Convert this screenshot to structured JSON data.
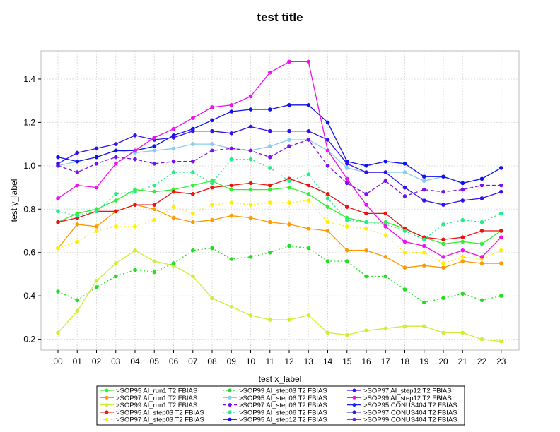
{
  "chart_data": {
    "type": "line",
    "title": "test title",
    "xlabel": "test x_label",
    "ylabel": "test y_label",
    "categories": [
      "00",
      "01",
      "02",
      "03",
      "04",
      "05",
      "06",
      "07",
      "08",
      "09",
      "10",
      "11",
      "12",
      "13",
      "14",
      "15",
      "16",
      "17",
      "18",
      "19",
      "20",
      "21",
      "22",
      "23"
    ],
    "yticks": [
      "0.2",
      "0.4",
      "0.6",
      "0.8",
      "1.0",
      "1.2",
      "1.4"
    ],
    "ylim": [
      0.15,
      1.53
    ],
    "grid": true,
    "legend_position": "bottom",
    "series": [
      {
        "name": ">SOP95 AI_run1 T2 FBIAS",
        "color": "#33ee33",
        "dash": "solid",
        "values": [
          0.74,
          0.78,
          0.8,
          0.84,
          0.89,
          0.88,
          0.89,
          0.91,
          0.93,
          0.89,
          0.89,
          0.89,
          0.9,
          0.87,
          0.81,
          0.76,
          0.74,
          0.74,
          0.71,
          0.67,
          0.64,
          0.65,
          0.64,
          0.7
        ]
      },
      {
        "name": ">SOP97 AI_run1 T2 FBIAS",
        "color": "#ff9900",
        "dash": "solid",
        "values": [
          0.62,
          0.73,
          0.72,
          0.79,
          0.82,
          0.8,
          0.76,
          0.74,
          0.75,
          0.77,
          0.76,
          0.74,
          0.73,
          0.71,
          0.7,
          0.61,
          0.61,
          0.58,
          0.53,
          0.54,
          0.53,
          0.56,
          0.55,
          0.55
        ]
      },
      {
        "name": ">SOP99 AI_run1 T2 FBIAS",
        "color": "#ccee33",
        "dash": "solid",
        "values": [
          0.23,
          0.33,
          0.47,
          0.55,
          0.61,
          0.56,
          0.54,
          0.49,
          0.39,
          0.35,
          0.31,
          0.29,
          0.29,
          0.31,
          0.23,
          0.22,
          0.24,
          0.25,
          0.26,
          0.26,
          0.23,
          0.23,
          0.2,
          0.19
        ]
      },
      {
        "name": ">SOP95 AI_step03 T2 FBIAS",
        "color": "#ee1111",
        "dash": "solid",
        "values": [
          0.74,
          0.76,
          0.79,
          0.79,
          0.82,
          0.82,
          0.88,
          0.87,
          0.9,
          0.91,
          0.92,
          0.91,
          0.94,
          0.91,
          0.87,
          0.81,
          0.78,
          0.78,
          0.71,
          0.67,
          0.66,
          0.67,
          0.7,
          0.7
        ]
      },
      {
        "name": ">SOP97 AI_step03 T2 FBIAS",
        "color": "#ffee00",
        "dash": "dotted",
        "values": [
          0.62,
          0.65,
          0.7,
          0.72,
          0.72,
          0.75,
          0.81,
          0.78,
          0.82,
          0.83,
          0.82,
          0.83,
          0.83,
          0.84,
          0.74,
          0.72,
          0.71,
          0.68,
          0.6,
          0.6,
          0.55,
          0.58,
          0.57,
          0.61
        ]
      },
      {
        "name": ">SOP99 AI_step03 T2 FBIAS",
        "color": "#22dd22",
        "dash": "dotted",
        "values": [
          0.42,
          0.38,
          0.44,
          0.49,
          0.52,
          0.51,
          0.55,
          0.61,
          0.62,
          0.57,
          0.58,
          0.6,
          0.63,
          0.62,
          0.56,
          0.56,
          0.49,
          0.49,
          0.43,
          0.37,
          0.39,
          0.41,
          0.38,
          0.4
        ]
      },
      {
        "name": ">SOP95 AI_step06 T2 FBIAS",
        "color": "#88ccee",
        "dash": "solid",
        "values": [
          1.0,
          1.02,
          1.04,
          1.07,
          1.06,
          1.07,
          1.08,
          1.1,
          1.1,
          1.08,
          1.07,
          1.09,
          1.12,
          1.12,
          1.07,
          0.99,
          0.97,
          0.97,
          0.97,
          0.93,
          0.95,
          0.92,
          0.94,
          0.99
        ]
      },
      {
        "name": ">SOP97 AI_step06 T2 FBIAS",
        "color": "#7711ee",
        "dash": "dashed",
        "values": [
          1.0,
          0.97,
          1.01,
          1.04,
          1.03,
          1.01,
          1.02,
          1.02,
          1.07,
          1.08,
          1.07,
          1.04,
          1.09,
          1.12,
          1.0,
          0.92,
          0.87,
          0.93,
          0.86,
          0.89,
          0.88,
          0.89,
          0.91,
          0.91
        ]
      },
      {
        "name": ">SOP99 AI_step06 T2 FBIAS",
        "color": "#22ee88",
        "dash": "dotted",
        "values": [
          0.79,
          0.77,
          0.79,
          0.87,
          0.88,
          0.91,
          0.97,
          0.97,
          0.92,
          1.03,
          1.03,
          0.99,
          0.93,
          0.96,
          0.85,
          0.75,
          0.74,
          0.73,
          0.7,
          0.66,
          0.73,
          0.75,
          0.74,
          0.78
        ]
      },
      {
        "name": ">SOP95 AI_step12 T2 FBIAS",
        "color": "#1111ee",
        "dash": "solid",
        "values": [
          1.04,
          1.02,
          1.04,
          1.07,
          1.07,
          1.09,
          1.14,
          1.17,
          1.21,
          1.25,
          1.26,
          1.26,
          1.28,
          1.28,
          1.2,
          1.02,
          1.0,
          1.02,
          1.01,
          0.95,
          0.95,
          0.92,
          0.94,
          0.99
        ]
      },
      {
        "name": ">SOP97 AI_step12 T2 FBIAS",
        "color": "#3311ee",
        "dash": "solid",
        "values": [
          1.01,
          1.06,
          1.08,
          1.1,
          1.14,
          1.12,
          1.13,
          1.16,
          1.16,
          1.15,
          1.18,
          1.16,
          1.16,
          1.16,
          1.12,
          1.01,
          0.97,
          0.97,
          0.9,
          0.84,
          0.82,
          0.84,
          0.85,
          0.88
        ]
      },
      {
        "name": ">SOP99 AI_step12 T2 FBIAS",
        "color": "#ee11ee",
        "dash": "solid",
        "values": [
          0.85,
          0.91,
          0.9,
          1.01,
          1.07,
          1.13,
          1.17,
          1.22,
          1.27,
          1.28,
          1.32,
          1.43,
          1.48,
          1.48,
          1.07,
          0.94,
          0.82,
          0.72,
          0.65,
          0.63,
          0.58,
          0.61,
          0.58,
          0.67
        ]
      }
    ],
    "legend_series": [
      {
        "name": ">SOP95 AI_run1 T2 FBIAS",
        "color": "#33ee33",
        "dash": "solid"
      },
      {
        "name": ">SOP97 AI_run1 T2 FBIAS",
        "color": "#ff9900",
        "dash": "solid"
      },
      {
        "name": ">SOP99 AI_run1 T2 FBIAS",
        "color": "#ccee33",
        "dash": "solid"
      },
      {
        "name": ">SOP95 AI_step03 T2 FBIAS",
        "color": "#ee1111",
        "dash": "solid"
      },
      {
        "name": ">SOP97 AI_step03 T2 FBIAS",
        "color": "#ffee00",
        "dash": "dotted"
      },
      {
        "name": ">SOP99 AI_step03 T2 FBIAS",
        "color": "#22dd22",
        "dash": "dotted"
      },
      {
        "name": ">SOP95 AI_step06 T2 FBIAS",
        "color": "#88ccee",
        "dash": "solid"
      },
      {
        "name": ">SOP97 AI_step06 T2 FBIAS",
        "color": "#7711ee",
        "dash": "dashed"
      },
      {
        "name": ">SOP99 AI_step06 T2 FBIAS",
        "color": "#22ee88",
        "dash": "dotted"
      },
      {
        "name": ">SOP95 AI_step12 T2 FBIAS",
        "color": "#1111ee",
        "dash": "solid"
      },
      {
        "name": ">SOP97 AI_step12 T2 FBIAS",
        "color": "#3311ee",
        "dash": "solid"
      },
      {
        "name": ">SOP99 AI_step12 T2 FBIAS",
        "color": "#ee11ee",
        "dash": "solid"
      },
      {
        "name": ">SOP95 CONUS404 T2 FBIAS",
        "color": "#1122ee",
        "dash": "solid"
      },
      {
        "name": ">SOP97 CONUS404 T2 FBIAS",
        "color": "#2222cc",
        "dash": "solid"
      },
      {
        "name": ">SOP99 CONUS404 T2 FBIAS",
        "color": "#6622ee",
        "dash": "solid"
      }
    ]
  }
}
